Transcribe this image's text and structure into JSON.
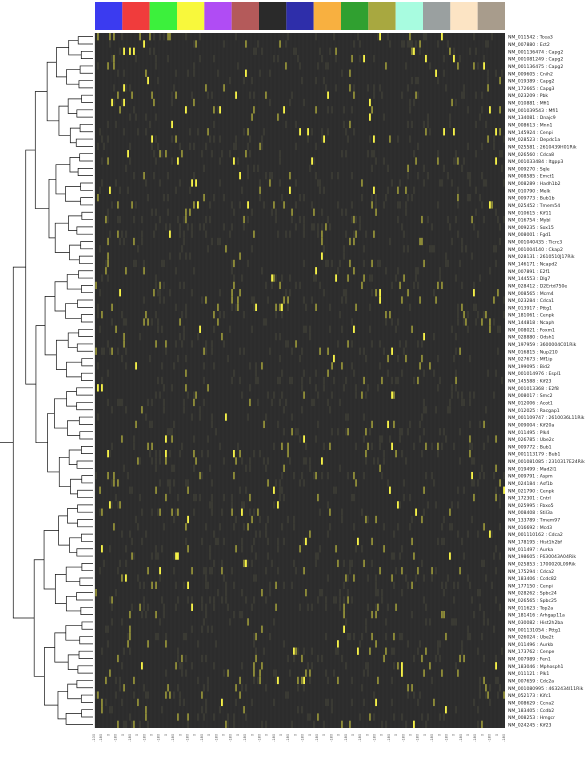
{
  "chart_data": {
    "type": "heatmap",
    "title": "",
    "xlabel": "",
    "ylabel": "",
    "legend": "none",
    "grid": true,
    "colors": {
      "background": "#2c2c2c",
      "cell_grid": "#3b3b3b",
      "high": "#f4f047",
      "mid": "#8c8a37",
      "low": "#2c2c2c"
    },
    "column_groups": [
      {
        "color": "#3b3bf0"
      },
      {
        "color": "#f03c3c"
      },
      {
        "color": "#3cf03c"
      },
      {
        "color": "#f8f83c"
      },
      {
        "color": "#b04cf4"
      },
      {
        "color": "#b45a5a"
      },
      {
        "color": "#2a2a2a"
      },
      {
        "color": "#2e2eaa"
      },
      {
        "color": "#f8b040"
      },
      {
        "color": "#30a030"
      },
      {
        "color": "#a8a840"
      },
      {
        "color": "#a8fce0"
      },
      {
        "color": "#9aa0a0"
      },
      {
        "color": "#fce4c4"
      },
      {
        "color": "#a89c8c"
      }
    ],
    "column_tick_labels": [
      "-100",
      "-180",
      "0",
      "-180",
      "0",
      "-180",
      "0",
      "-180",
      "0",
      "-180",
      "0",
      "-180",
      "0",
      "-180",
      "0",
      "-180",
      "0",
      "-180",
      "0",
      "-180",
      "0",
      "-180",
      "0",
      "-180",
      "0",
      "-180",
      "0",
      "-180",
      "0",
      "-180",
      "0",
      "-180",
      "0",
      "-180",
      "0",
      "-180",
      "0",
      "-180",
      "0",
      "-180",
      "0",
      "-180",
      "0",
      "-180",
      "0",
      "-180",
      "0",
      "-180",
      "0",
      "-180",
      "0",
      "-180",
      "0",
      "-180",
      "0",
      "-180",
      "0",
      "-180"
    ],
    "rows": [
      "NM_011542 : Tcea3",
      "NM_007880 : Ect2",
      "NM_001136474 : Capg2",
      "NM_001081249 : Capg2",
      "NM_001136475 : Capg2",
      "NM_009605 : Cnih2",
      "NM_019389 : Capg2",
      "NM_172665 : Capg3",
      "NM_023209 : Pbk",
      "NM_010881 : Mfi1",
      "NM_001039543 : Mfi1",
      "NM_134081 : Dnajc9",
      "NM_008613 : Mnn1",
      "NM_145924 : Cenpi",
      "NM_028523 : Depdc1a",
      "NM_025581 : 2610439H01Rik",
      "NM_026560 : Cdca8",
      "NM_001033484 : Itgpp3",
      "NM_009270 : Sqle",
      "NM_008585 : Emct1",
      "NM_008289 : Hadh1b2",
      "NM_010790 : Melk",
      "NM_009773 : Bub1b",
      "NM_025452 : Tmem54",
      "NM_010615 : Kif11",
      "NM_016754 : Mybl",
      "NM_009235 : Sox15",
      "NM_008001 : Fgd1",
      "NM_001040435 : Ticrc3",
      "NM_001004140 : Ckap2",
      "NM_028131 : 2610510J17Rik",
      "NM_146171 : Ncapd2",
      "NM_007891 : E2f1",
      "NM_144553 : Dlg7",
      "NM_028412 : D2Ertd750e",
      "NM_008565 : Mcm4",
      "NM_023284 : Cdca1",
      "NM_013917 : Pttg1",
      "NM_181061 : Cenpk",
      "NM_144818 : Ncaph",
      "NM_008021 : Foxm1",
      "NM_028880 : Odsh1",
      "NM_197959 : 3600004C01Rik",
      "NM_016815 : Nup210",
      "NM_027673 : Mf1ip",
      "NM_199095 : Bid2",
      "NM_001014976 : Espl1",
      "NM_145588 : Kif23",
      "NM_001013368 : E2f8",
      "NM_008017 : Smc2",
      "NM_012006 : Acot1",
      "NM_012025 : Racgap1",
      "NM_001109747 : 2610036L11Rik",
      "NM_009004 : Kif20a",
      "NM_011495 : Plk4",
      "NM_026785 : Ube2c",
      "NM_009772 : Bub1",
      "NM_001113179 : Bub1",
      "NM_001081085 : 2310317E24Rik",
      "NM_019499 : Mad2l1",
      "NM_009791 : Aspm",
      "NM_024184 : Asf1b",
      "NM_021790 : Cenpk",
      "NM_172301 : Cntrl",
      "NM_025995 : Fbxo5",
      "NM_008408 : Stil3a",
      "NM_133789 : Tmem97",
      "NM_016692 : Mcd3",
      "NM_001110162 : Cdca2",
      "NM_178195 : Hist1h2bf",
      "NM_011497 : Aurka",
      "NM_198605 : F630043A04Rik",
      "NM_025853 : 1700020L09Rik",
      "NM_175294 : Cdca2",
      "NM_183406 : Ccdc82",
      "NM_177150 : Cenpi",
      "NM_028262 : Spbc24",
      "NM_026565 : Spbc25",
      "NM_011623 : Top2a",
      "NM_181416 : Arhgap11a",
      "NM_030082 : Hist2h2ba",
      "NM_001131054 : Pttg1",
      "NM_026024 : Ube2t",
      "NM_011496 : Aurkb",
      "NM_173762 : Cenpe",
      "NM_007989 : Fen1",
      "NM_183046 : Mphosph1",
      "NM_011121 : Plk1",
      "NM_007659 : Cdc2a",
      "NM_001080995 : 4632434I11Rik",
      "NM_052173 : Kifc1",
      "NM_008629 : Ccna2",
      "NM_183405 : Ccdb2",
      "NM_008253 : Hmgcr",
      "NM_024245 : Kif23"
    ],
    "value_scale": [
      0,
      1
    ],
    "values_note": ""
  }
}
